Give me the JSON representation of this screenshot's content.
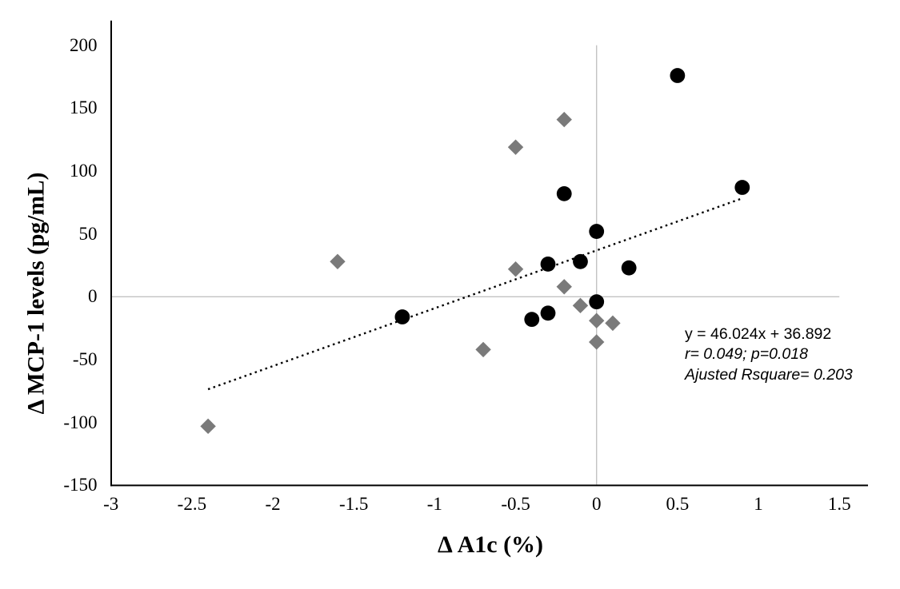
{
  "chart_data": {
    "type": "scatter",
    "title": "",
    "xlabel": "Δ A1c (%)",
    "ylabel": "Δ MCP-1 levels (pg/mL)",
    "xlim": [
      -3,
      1.5
    ],
    "ylim": [
      -150,
      200
    ],
    "x_tick_values": [
      -3,
      -2.5,
      -2,
      -1.5,
      -1,
      -0.5,
      0,
      0.5,
      1,
      1.5
    ],
    "x_tick_labels": [
      "-3",
      "-2.5",
      "-2",
      "-1.5",
      "-1",
      "-0.5",
      "0",
      "0.5",
      "1",
      "1.5"
    ],
    "y_tick_values": [
      200,
      150,
      100,
      50,
      0,
      -50,
      -100,
      -150
    ],
    "y_tick_labels": [
      "200",
      "150",
      "100",
      "50",
      "0",
      "-50",
      "-100",
      "-150"
    ],
    "grid": "zero crosshair lines only",
    "legend": "none",
    "colors": {
      "axis": "#000000",
      "zero_line": "#c3c3c3",
      "series_circles": "#000000",
      "series_diamonds": "#7a7a7a",
      "trendline": "#000000"
    },
    "series": [
      {
        "name": "filled circles",
        "marker": "circle",
        "color": "#000000",
        "points": [
          [
            0.5,
            176
          ],
          [
            0.9,
            87
          ],
          [
            -0.2,
            82
          ],
          [
            0,
            52
          ],
          [
            -0.1,
            28
          ],
          [
            -0.3,
            26
          ],
          [
            0.2,
            23
          ],
          [
            0,
            -4
          ],
          [
            -0.3,
            -13
          ],
          [
            -0.4,
            -18
          ],
          [
            -1.2,
            -16
          ]
        ]
      },
      {
        "name": "filled diamonds",
        "marker": "diamond",
        "color": "#7a7a7a",
        "points": [
          [
            -0.2,
            141
          ],
          [
            -0.5,
            119
          ],
          [
            -1.6,
            28
          ],
          [
            -0.5,
            22
          ],
          [
            -0.2,
            8
          ],
          [
            -0.1,
            -7
          ],
          [
            0,
            -19
          ],
          [
            0.1,
            -21
          ],
          [
            0,
            -36
          ],
          [
            -0.7,
            -42
          ],
          [
            -2.4,
            -103
          ]
        ]
      }
    ],
    "trendline": {
      "style": "dotted",
      "color": "#000000",
      "slope": 46.024,
      "intercept": 36.892,
      "x_start": -2.4,
      "x_end": 0.9
    },
    "annotation": {
      "lines": [
        {
          "text": "y = 46.024x + 36.892",
          "italic": false
        },
        {
          "text": "r= 0.049; p=0.018",
          "italic": true
        },
        {
          "text": "Ajusted Rsquare= 0.203",
          "italic": true
        }
      ]
    }
  }
}
